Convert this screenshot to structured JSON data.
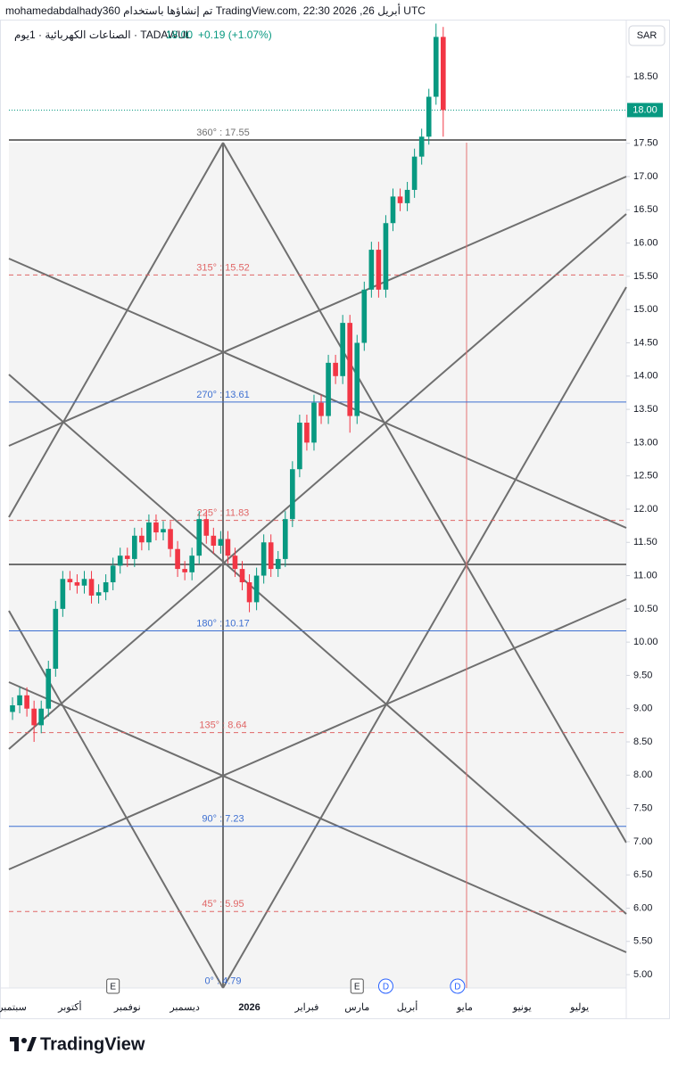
{
  "chart_data": {
    "type": "candlestick",
    "title": "mohamedabdalhady360 تم إنشاؤها باستخدام TradingView.com, 22:30 2026 ,26 أبريل UTC",
    "symbol": "الصناعات الكهربائية · 1يوم · TADAWUL",
    "symbol_price": "18.00",
    "symbol_change": "+0.19 (+1.07%)",
    "currency": "SAR",
    "brand": "TradingView",
    "up_color": "#089981",
    "down_color": "#f23645",
    "categories": [
      "سبتمبر",
      null,
      null,
      null,
      null,
      null,
      null,
      null,
      "أكتوبر",
      null,
      null,
      null,
      null,
      null,
      null,
      null,
      "نوفمبر",
      null,
      null,
      null,
      null,
      null,
      null,
      null,
      "ديسمبر",
      null,
      null,
      null,
      null,
      null,
      null,
      null,
      null,
      "2026",
      null,
      null,
      null,
      null,
      null,
      null,
      null,
      "فبراير",
      null,
      null,
      null,
      null,
      null,
      null,
      "مارس",
      null,
      null,
      null,
      null,
      null,
      null,
      "أبريل",
      null,
      null,
      null,
      null,
      null,
      null,
      null,
      "مايو",
      null,
      null,
      null,
      null,
      null,
      null,
      null,
      "يونيو",
      null,
      null,
      null,
      null,
      null,
      null,
      null,
      "يوليو",
      null,
      null,
      null,
      null,
      null,
      null
    ],
    "open": [
      8.95,
      9.05,
      9.2,
      9.0,
      8.75,
      9.0,
      9.6,
      10.5,
      10.95,
      10.9,
      10.85,
      10.95,
      10.7,
      10.75,
      10.9,
      11.15,
      11.3,
      11.25,
      11.6,
      11.5,
      11.8,
      11.65,
      11.7,
      11.4,
      11.1,
      11.05,
      11.3,
      11.85,
      11.6,
      11.45,
      11.55,
      11.3,
      11.1,
      10.9,
      10.6,
      11.0,
      11.5,
      11.1,
      11.25,
      11.85,
      12.6,
      13.3,
      13.0,
      13.6,
      13.4,
      14.2,
      14.0,
      14.8,
      13.4,
      14.5,
      15.3,
      15.9,
      15.3,
      16.3,
      16.7,
      16.6,
      16.8,
      17.3,
      17.6,
      18.2,
      19.1,
      null,
      null,
      null,
      null,
      null,
      null,
      null,
      null,
      null,
      null,
      null,
      null,
      null,
      null,
      null,
      null,
      null,
      null,
      null,
      null,
      null,
      null,
      null,
      null,
      null
    ],
    "high": [
      9.17,
      9.32,
      9.32,
      9.12,
      9.12,
      9.72,
      10.62,
      11.07,
      11.07,
      11.02,
      11.07,
      11.07,
      10.87,
      11.02,
      11.27,
      11.42,
      11.42,
      11.72,
      11.72,
      11.92,
      11.92,
      11.82,
      11.82,
      11.52,
      11.22,
      11.42,
      11.97,
      11.97,
      11.72,
      11.67,
      11.67,
      11.42,
      11.22,
      11.02,
      11.12,
      11.62,
      11.62,
      11.37,
      11.97,
      12.72,
      13.42,
      13.42,
      13.72,
      13.72,
      14.32,
      14.32,
      14.92,
      14.92,
      14.62,
      15.42,
      16.02,
      16.02,
      16.42,
      16.82,
      16.82,
      16.92,
      17.42,
      17.72,
      18.32,
      19.3,
      19.25,
      null,
      null,
      null,
      null,
      null,
      null,
      null,
      null,
      null,
      null,
      null,
      null,
      null,
      null,
      null,
      null,
      null,
      null,
      null,
      null,
      null,
      null,
      null,
      null,
      null
    ],
    "low": [
      8.83,
      8.93,
      8.88,
      8.5,
      8.63,
      8.88,
      9.48,
      10.38,
      10.78,
      10.73,
      10.73,
      10.58,
      10.58,
      10.63,
      10.78,
      11.03,
      11.13,
      11.13,
      11.38,
      11.38,
      11.53,
      11.53,
      11.28,
      10.98,
      10.93,
      10.93,
      11.18,
      11.48,
      11.33,
      11.33,
      11.18,
      10.98,
      10.78,
      10.45,
      10.48,
      10.88,
      10.98,
      10.98,
      11.13,
      11.73,
      12.48,
      12.88,
      12.88,
      13.28,
      13.28,
      13.88,
      13.88,
      13.15,
      13.28,
      14.38,
      15.18,
      15.18,
      15.18,
      16.18,
      16.48,
      16.48,
      16.68,
      17.18,
      17.48,
      18.08,
      17.6,
      null,
      null,
      null,
      null,
      null,
      null,
      null,
      null,
      null,
      null,
      null,
      null,
      null,
      null,
      null,
      null,
      null,
      null,
      null,
      null,
      null,
      null,
      null,
      null,
      null
    ],
    "close": [
      9.05,
      9.2,
      9.0,
      8.75,
      9.0,
      9.6,
      10.5,
      10.95,
      10.9,
      10.85,
      10.95,
      10.7,
      10.75,
      10.9,
      11.15,
      11.3,
      11.25,
      11.6,
      11.5,
      11.8,
      11.65,
      11.7,
      11.4,
      11.1,
      11.05,
      11.3,
      11.85,
      11.6,
      11.45,
      11.55,
      11.3,
      11.1,
      10.9,
      10.6,
      11.0,
      11.5,
      11.1,
      11.25,
      11.85,
      12.6,
      13.3,
      13.0,
      13.6,
      13.4,
      14.2,
      14.0,
      14.8,
      13.4,
      14.5,
      15.3,
      15.9,
      15.3,
      16.3,
      16.7,
      16.6,
      16.8,
      17.3,
      17.6,
      18.2,
      19.1,
      18.0,
      null,
      null,
      null,
      null,
      null,
      null,
      null,
      null,
      null,
      null,
      null,
      null,
      null,
      null,
      null,
      null,
      null,
      null,
      null,
      null,
      null,
      null,
      null,
      null,
      null
    ],
    "ylim": [
      4.8,
      19.36
    ],
    "yticks": [
      {
        "value": 5,
        "label": "5.00"
      },
      {
        "value": 5.5,
        "label": "5.50"
      },
      {
        "value": 6,
        "label": "6.00"
      },
      {
        "value": 6.5,
        "label": "6.50"
      },
      {
        "value": 7,
        "label": "7.00"
      },
      {
        "value": 7.5,
        "label": "7.50"
      },
      {
        "value": 8,
        "label": "8.00"
      },
      {
        "value": 8.5,
        "label": "8.50"
      },
      {
        "value": 9,
        "label": "9.00"
      },
      {
        "value": 9.5,
        "label": "9.50"
      },
      {
        "value": 10,
        "label": "10.00"
      },
      {
        "value": 10.5,
        "label": "10.50"
      },
      {
        "value": 11,
        "label": "11.00"
      },
      {
        "value": 11.5,
        "label": "11.50"
      },
      {
        "value": 12,
        "label": "12.00"
      },
      {
        "value": 12.5,
        "label": "12.50"
      },
      {
        "value": 13,
        "label": "13.00"
      },
      {
        "value": 13.5,
        "label": "13.50"
      },
      {
        "value": 14,
        "label": "14.00"
      },
      {
        "value": 14.5,
        "label": "14.50"
      },
      {
        "value": 15,
        "label": "15.00"
      },
      {
        "value": 15.5,
        "label": "15.50"
      },
      {
        "value": 16,
        "label": "16.00"
      },
      {
        "value": 16.5,
        "label": "16.50"
      },
      {
        "value": 17,
        "label": "17.00"
      },
      {
        "value": 17.5,
        "label": "17.50"
      },
      {
        "value": 18.5,
        "label": "18.50"
      }
    ],
    "last_price": {
      "value": 18,
      "label": "18.00"
    },
    "levels": [
      {
        "label": "360° : 17.55",
        "value": 17.55,
        "color": "#707070",
        "style": "solid"
      },
      {
        "label": "315° : 15.52",
        "value": 15.52,
        "color": "#e06666",
        "style": "dashed"
      },
      {
        "label": "270° : 13.61",
        "value": 13.61,
        "color": "#3d6fd1",
        "style": "solid"
      },
      {
        "label": "225° : 11.83",
        "value": 11.83,
        "color": "#e06666",
        "style": "dashed"
      },
      {
        "label": "180° : 10.17",
        "value": 10.17,
        "color": "#3d6fd1",
        "style": "solid"
      },
      {
        "label": "135° : 8.64",
        "value": 8.64,
        "color": "#e06666",
        "style": "dashed"
      },
      {
        "label": "90° : 7.23",
        "value": 7.23,
        "color": "#3d6fd1",
        "style": "solid"
      },
      {
        "label": "45° : 5.95",
        "value": 5.95,
        "color": "#e06666",
        "style": "dashed"
      },
      {
        "label": "0° : 4.79",
        "value": 4.79,
        "color": "#3d6fd1",
        "style": "none"
      }
    ],
    "events": [
      {
        "label": "E",
        "at": 14
      },
      {
        "label": "E",
        "at": 48
      },
      {
        "label": "D",
        "at": 52
      },
      {
        "label": "D",
        "at": 62
      }
    ]
  }
}
